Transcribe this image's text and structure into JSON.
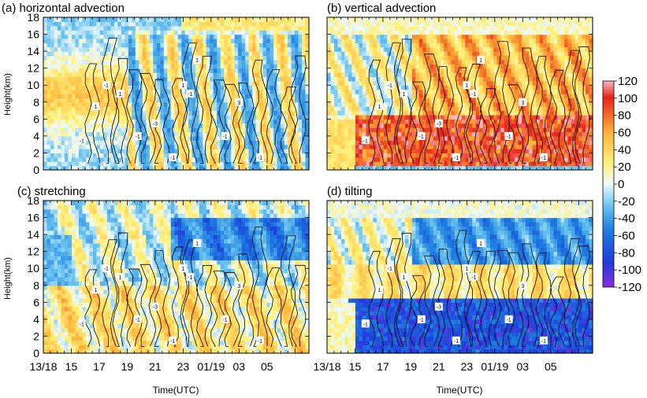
{
  "figure": {
    "colorbar": {
      "ticks": [
        "120",
        "100",
        "80",
        "60",
        "40",
        "20",
        "0",
        "-20",
        "-40",
        "-60",
        "-80",
        "-100",
        "-120"
      ],
      "range": [
        -120,
        120
      ],
      "colors": {
        "min": "#8a2be2",
        "neg_strong": "#1f3ddc",
        "neg_mid": "#1e7fe0",
        "neg_weak": "#6ec6ef",
        "zero": "#eef9fc",
        "pos_weak": "#fff27a",
        "pos_mid": "#ffb33a",
        "pos_strong": "#e8231a",
        "max": "#f7b7c3"
      }
    }
  },
  "chart_data": [
    {
      "type": "heatmap",
      "title": "(a) horizontal advection",
      "ylabel": "Height(km)",
      "xlabel": "",
      "yticks": [
        "0",
        "2",
        "4",
        "6",
        "8",
        "10",
        "12",
        "14",
        "16",
        "18"
      ],
      "xticks": [
        "13/18",
        "15",
        "17",
        "19",
        "21",
        "23",
        "01/19",
        "03",
        "05"
      ],
      "ylim": [
        0,
        18
      ],
      "xlim": [
        0,
        38
      ],
      "grid": false,
      "fill_pattern": "positive 20-60 in 6-12 km early, alternating positive/negative columns later",
      "contour_labels": [
        "-1",
        "1",
        "-1",
        "1",
        "-1",
        "-3",
        "-1",
        "1",
        "-1",
        "1",
        "-1",
        "3",
        "-1"
      ]
    },
    {
      "type": "heatmap",
      "title": "(b) vertical advection",
      "ylabel": "",
      "xlabel": "",
      "yticks": [],
      "xticks": [],
      "ylim": [
        0,
        18
      ],
      "xlim": [
        0,
        38
      ],
      "grid": false,
      "fill_pattern": "strong positive 80-120 below 6 km after day 15, positive 40-80 aloft",
      "contour_labels": [
        "-1",
        "1",
        "-1",
        "1",
        "-1",
        "-3",
        "-1",
        "1",
        "-1",
        "1",
        "-1",
        "3",
        "-1"
      ]
    },
    {
      "type": "heatmap",
      "title": "(c) stretching",
      "ylabel": "Height(km)",
      "xlabel": "Time(UTC)",
      "yticks": [
        "0",
        "2",
        "4",
        "6",
        "8",
        "10",
        "12",
        "14",
        "16",
        "18"
      ],
      "xticks": [
        "13/18",
        "15",
        "17",
        "19",
        "21",
        "23",
        "01/19",
        "03",
        "05"
      ],
      "ylim": [
        0,
        18
      ],
      "xlim": [
        0,
        38
      ],
      "grid": false,
      "fill_pattern": "positive 20-60 in low-mid levels, negative -60 to -100 near 12-16 km",
      "contour_labels": [
        "-1",
        "1",
        "-1",
        "1",
        "-1",
        "-3",
        "-1",
        "1",
        "-1",
        "1",
        "-1",
        "3",
        "-1"
      ]
    },
    {
      "type": "heatmap",
      "title": "(d) tilting",
      "ylabel": "",
      "xlabel": "Time(UTC)",
      "yticks": [],
      "xticks": [
        "13/18",
        "15",
        "17",
        "19",
        "21",
        "23",
        "01/19",
        "03",
        "05"
      ],
      "ylim": [
        0,
        18
      ],
      "xlim": [
        0,
        38
      ],
      "grid": false,
      "fill_pattern": "strong negative -60 to -120 below 6 km, negative aloft, positive 6-10 km",
      "contour_labels": [
        "-1",
        "1",
        "-1",
        "1",
        "-1",
        "-3",
        "-1",
        "1",
        "-1",
        "1",
        "-1",
        "3",
        "-1"
      ]
    }
  ]
}
